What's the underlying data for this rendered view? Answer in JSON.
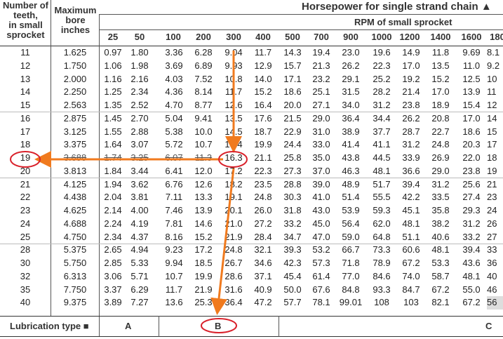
{
  "header": {
    "teeth_label_1": "Number of",
    "teeth_label_2": "teeth,",
    "teeth_label_3": "in small",
    "teeth_label_4": "sprocket",
    "bore_label_1": "Maximum",
    "bore_label_2": "bore",
    "bore_label_3": "inches",
    "title": "Horsepower for single strand chain ▲",
    "rpm_title": "RPM of small sprocket"
  },
  "rpm": [
    "25",
    "50",
    "100",
    "200",
    "300",
    "400",
    "500",
    "700",
    "900",
    "1000",
    "1200",
    "1400",
    "1600",
    "180"
  ],
  "rows": [
    [
      "11",
      "1.625",
      "0.97",
      "1.80",
      "3.36",
      "6.28",
      "9.04",
      "11.7",
      "14.3",
      "19.4",
      "23.0",
      "19.6",
      "14.9",
      "11.8",
      "9.69",
      "8.1"
    ],
    [
      "12",
      "1.750",
      "1.06",
      "1.98",
      "3.69",
      "6.89",
      "9.93",
      "12.9",
      "15.7",
      "21.3",
      "26.2",
      "22.3",
      "17.0",
      "13.5",
      "11.0",
      "9.2"
    ],
    [
      "13",
      "2.000",
      "1.16",
      "2.16",
      "4.03",
      "7.52",
      "10.8",
      "14.0",
      "17.1",
      "23.2",
      "29.1",
      "25.2",
      "19.2",
      "15.2",
      "12.5",
      "10"
    ],
    [
      "14",
      "2.250",
      "1.25",
      "2.34",
      "4.36",
      "8.14",
      "11.7",
      "15.2",
      "18.6",
      "25.1",
      "31.5",
      "28.2",
      "21.4",
      "17.0",
      "13.9",
      "11"
    ],
    [
      "15",
      "2.563",
      "1.35",
      "2.52",
      "4.70",
      "8.77",
      "12.6",
      "16.4",
      "20.0",
      "27.1",
      "34.0",
      "31.2",
      "23.8",
      "18.9",
      "15.4",
      "12"
    ],
    [
      "16",
      "2.875",
      "1.45",
      "2.70",
      "5.04",
      "9.41",
      "13.5",
      "17.6",
      "21.5",
      "29.0",
      "36.4",
      "34.4",
      "26.2",
      "20.8",
      "17.0",
      "14"
    ],
    [
      "17",
      "3.125",
      "1.55",
      "2.88",
      "5.38",
      "10.0",
      "14.5",
      "18.7",
      "22.9",
      "31.0",
      "38.9",
      "37.7",
      "28.7",
      "22.7",
      "18.6",
      "15"
    ],
    [
      "18",
      "3.375",
      "1.64",
      "3.07",
      "5.72",
      "10.7",
      "15.4",
      "19.9",
      "24.4",
      "33.0",
      "41.4",
      "41.1",
      "31.2",
      "24.8",
      "20.3",
      "17"
    ],
    [
      "19",
      "3.688",
      "1.74",
      "3.25",
      "6.07",
      "11.3",
      "16.3",
      "21.1",
      "25.8",
      "35.0",
      "43.8",
      "44.5",
      "33.9",
      "26.9",
      "22.0",
      "18"
    ],
    [
      "20",
      "3.813",
      "1.84",
      "3.44",
      "6.41",
      "12.0",
      "17.2",
      "22.3",
      "27.3",
      "37.0",
      "46.3",
      "48.1",
      "36.6",
      "29.0",
      "23.8",
      "19"
    ],
    [
      "21",
      "4.125",
      "1.94",
      "3.62",
      "6.76",
      "12.6",
      "18.2",
      "23.5",
      "28.8",
      "39.0",
      "48.9",
      "51.7",
      "39.4",
      "31.2",
      "25.6",
      "21"
    ],
    [
      "22",
      "4.438",
      "2.04",
      "3.81",
      "7.11",
      "13.3",
      "19.1",
      "24.8",
      "30.3",
      "41.0",
      "51.4",
      "55.5",
      "42.2",
      "33.5",
      "27.4",
      "23"
    ],
    [
      "23",
      "4.625",
      "2.14",
      "4.00",
      "7.46",
      "13.9",
      "20.1",
      "26.0",
      "31.8",
      "43.0",
      "53.9",
      "59.3",
      "45.1",
      "35.8",
      "29.3",
      "24"
    ],
    [
      "24",
      "4.688",
      "2.24",
      "4.19",
      "7.81",
      "14.6",
      "21.0",
      "27.2",
      "33.2",
      "45.0",
      "56.4",
      "62.0",
      "48.1",
      "38.2",
      "31.2",
      "26"
    ],
    [
      "25",
      "4.750",
      "2.34",
      "4.37",
      "8.16",
      "15.2",
      "21.9",
      "28.4",
      "34.7",
      "47.0",
      "59.0",
      "64.8",
      "51.1",
      "40.6",
      "33.2",
      "27"
    ],
    [
      "28",
      "5.375",
      "2.65",
      "4.94",
      "9.23",
      "17.2",
      "24.8",
      "32.1",
      "39.3",
      "53.2",
      "66.7",
      "73.3",
      "60.6",
      "48.1",
      "39.4",
      "33"
    ],
    [
      "30",
      "5.750",
      "2.85",
      "5.33",
      "9.94",
      "18.5",
      "26.7",
      "34.6",
      "42.3",
      "57.3",
      "71.8",
      "78.9",
      "67.2",
      "53.3",
      "43.6",
      "36"
    ],
    [
      "32",
      "6.313",
      "3.06",
      "5.71",
      "10.7",
      "19.9",
      "28.6",
      "37.1",
      "45.4",
      "61.4",
      "77.0",
      "84.6",
      "74.0",
      "58.7",
      "48.1",
      "40"
    ],
    [
      "35",
      "7.750",
      "3.37",
      "6.29",
      "11.7",
      "21.9",
      "31.6",
      "40.9",
      "50.0",
      "67.6",
      "84.8",
      "93.3",
      "84.7",
      "67.2",
      "55.0",
      "46"
    ],
    [
      "40",
      "9.375",
      "3.89",
      "7.27",
      "13.6",
      "25.3",
      "36.4",
      "47.2",
      "57.7",
      "78.1",
      "99.01",
      "108",
      "103",
      "82.1",
      "67.2",
      "56"
    ]
  ],
  "lubrication": {
    "label": "Lubrication type ■",
    "a": "A",
    "b": "B",
    "c": "C"
  },
  "colors": {
    "arrow": "#f07a1e",
    "circle": "#d9202a",
    "lines": "#555555"
  }
}
